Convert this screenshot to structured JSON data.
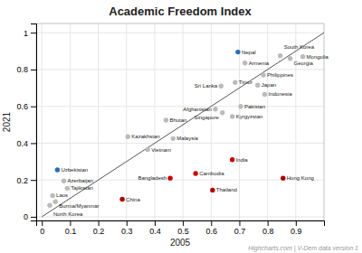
{
  "chart_data": {
    "type": "scatter",
    "title": "Academic Freedom Index",
    "xlabel": "2005",
    "ylabel": "2021",
    "watermark": "Highcharts.com | V-Dem data version 1",
    "labels": [
      "Nepal",
      "South Korea",
      "Mongolia",
      "Georgia",
      "Armenia",
      "Philippines",
      "Timor",
      "Japan",
      "Sri Lanka",
      "Indonesia",
      "Pakistan",
      "Afghanistan",
      "Singapore",
      "Kyrgyzstan",
      "Bhutan",
      "Kazakhstan",
      "Malaysia",
      "Vietnam",
      "India",
      "Cambodia",
      "Bangladesh",
      "Uzbekistan",
      "Azerbaijan",
      "Tajikistan",
      "China",
      "Laos",
      "Burma/Myanmar",
      "North Korea",
      "Thailand",
      "Hong Kong"
    ],
    "x": [
      0.695,
      0.845,
      0.925,
      0.88,
      0.72,
      0.785,
      0.685,
      0.765,
      0.635,
      0.79,
      0.705,
      0.615,
      0.64,
      0.675,
      0.44,
      0.305,
      0.465,
      0.375,
      0.675,
      0.545,
      0.455,
      0.055,
      0.078,
      0.09,
      0.285,
      0.038,
      0.048,
      0.028,
      0.605,
      0.855
    ],
    "values": [
      0.895,
      0.875,
      0.87,
      0.86,
      0.835,
      0.77,
      0.73,
      0.715,
      0.71,
      0.665,
      0.6,
      0.585,
      0.565,
      0.545,
      0.525,
      0.435,
      0.425,
      0.365,
      0.31,
      0.235,
      0.21,
      0.255,
      0.195,
      0.155,
      0.095,
      0.115,
      0.082,
      0.062,
      0.145,
      0.21
    ],
    "colors": [
      "#2a6db5",
      "#bbbbbb",
      "#bbbbbb",
      "#bbbbbb",
      "#bbbbbb",
      "#bbbbbb",
      "#bbbbbb",
      "#bbbbbb",
      "#bbbbbb",
      "#bbbbbb",
      "#bbbbbb",
      "#bbbbbb",
      "#bbbbbb",
      "#bbbbbb",
      "#bbbbbb",
      "#bbbbbb",
      "#bbbbbb",
      "#bbbbbb",
      "#cc0000",
      "#cc0000",
      "#cc0000",
      "#2a6db5",
      "#bbbbbb",
      "#bbbbbb",
      "#aa0000",
      "#bbbbbb",
      "#bbbbbb",
      "#bbbbbb",
      "#aa0000",
      "#aa0000"
    ],
    "reference_line": {
      "x": [
        0,
        1.0
      ],
      "y": [
        0,
        1.0
      ],
      "color": "#555555"
    },
    "xlim": [
      -0.02,
      1.0
    ],
    "ylim": [
      -0.02,
      1.05
    ],
    "xticks": [
      0,
      0.1,
      0.2,
      0.3,
      0.4,
      0.5,
      0.6,
      0.7,
      0.8,
      0.9
    ],
    "yticks": [
      0,
      0.2,
      0.4,
      0.6,
      0.8,
      1
    ],
    "grid": true
  }
}
